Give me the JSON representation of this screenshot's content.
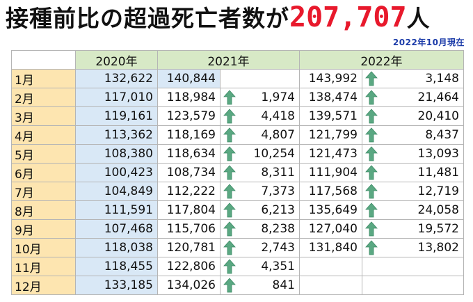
{
  "title": {
    "text": "接種前比の超過死亡者数が",
    "number": "207,707",
    "suffix": "人",
    "as_of": "2022年10月現在"
  },
  "table": {
    "headers": [
      "2020年",
      "2021年",
      "2022年"
    ],
    "rows": [
      {
        "month": "1月",
        "y2020": "132,622",
        "y2021": "140,844",
        "d2021": "",
        "y2022": "143,992",
        "d2022": "3,148"
      },
      {
        "month": "2月",
        "y2020": "117,010",
        "y2021": "118,984",
        "d2021": "1,974",
        "y2022": "138,474",
        "d2022": "21,464"
      },
      {
        "month": "3月",
        "y2020": "119,161",
        "y2021": "123,579",
        "d2021": "4,418",
        "y2022": "139,571",
        "d2022": "20,410"
      },
      {
        "month": "4月",
        "y2020": "113,362",
        "y2021": "118,169",
        "d2021": "4,807",
        "y2022": "121,799",
        "d2022": "8,437"
      },
      {
        "month": "5月",
        "y2020": "108,380",
        "y2021": "118,634",
        "d2021": "10,254",
        "y2022": "121,473",
        "d2022": "13,093"
      },
      {
        "month": "6月",
        "y2020": "100,423",
        "y2021": "108,734",
        "d2021": "8,311",
        "y2022": "111,904",
        "d2022": "11,481"
      },
      {
        "month": "7月",
        "y2020": "104,849",
        "y2021": "112,222",
        "d2021": "7,373",
        "y2022": "117,568",
        "d2022": "12,719"
      },
      {
        "month": "8月",
        "y2020": "111,591",
        "y2021": "117,804",
        "d2021": "6,213",
        "y2022": "135,649",
        "d2022": "24,058"
      },
      {
        "month": "9月",
        "y2020": "107,468",
        "y2021": "115,706",
        "d2021": "8,238",
        "y2022": "127,040",
        "d2022": "19,572"
      },
      {
        "month": "10月",
        "y2020": "118,038",
        "y2021": "120,781",
        "d2021": "2,743",
        "y2022": "131,840",
        "d2022": "13,802"
      },
      {
        "month": "11月",
        "y2020": "118,455",
        "y2021": "122,806",
        "d2021": "4,351",
        "y2022": "",
        "d2022": ""
      },
      {
        "month": "12月",
        "y2020": "133,185",
        "y2021": "134,026",
        "d2021": "841",
        "y2022": "",
        "d2022": ""
      }
    ]
  },
  "colors": {
    "title_number": "#e8192c",
    "as_of": "#1a3aa8",
    "header_bg": "#d7e9c6",
    "month_bg": "#fde5b0",
    "y2020_bg": "#d9e8f6",
    "arrow": "#5aa882"
  },
  "icons": {
    "increase": "up-arrow-icon"
  }
}
